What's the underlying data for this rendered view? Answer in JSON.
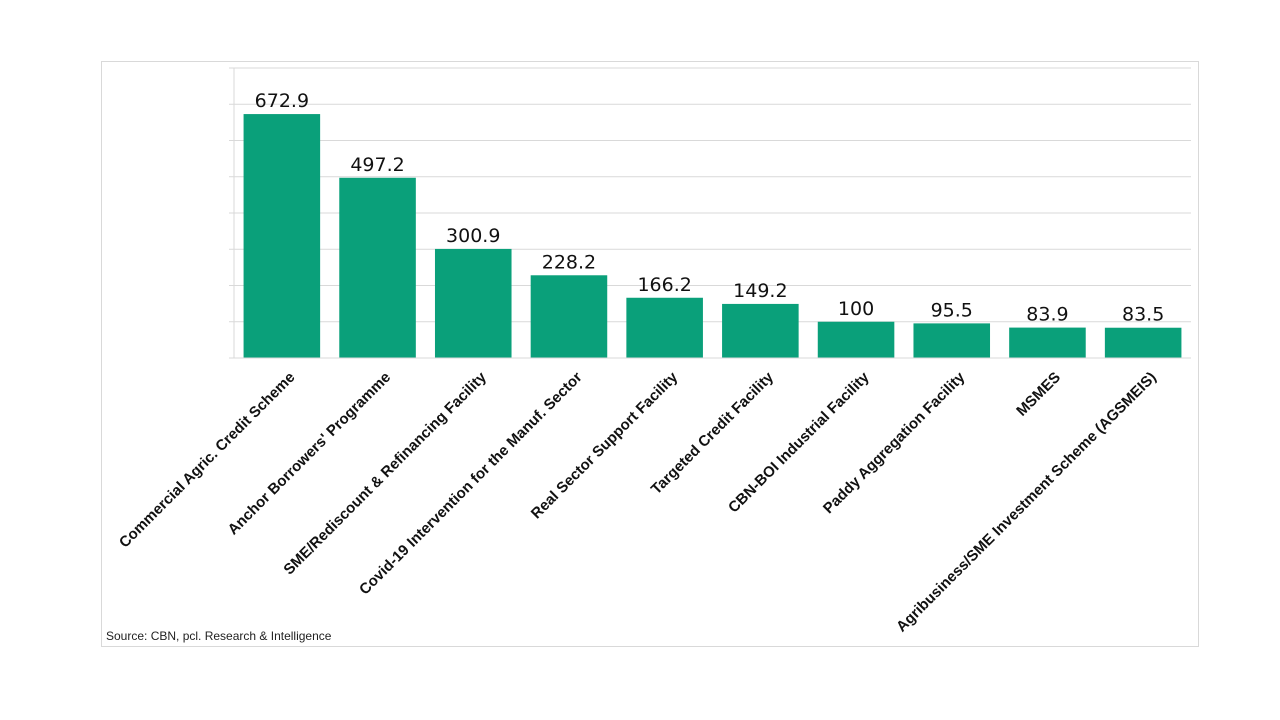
{
  "chart_data": {
    "type": "bar",
    "categories": [
      "Commercial Agric. Credit Scheme",
      "Anchor Borrowers' Programme",
      "SME/Rediscount & Refinancing Facility",
      "Covid-19 Intervention for the Manuf. Sector",
      "Real Sector Support Facility",
      "Targeted Credit Facility",
      "CBN-BOI Industrial Facility",
      "Paddy Aggregation Facility",
      "MSMES",
      "Agribusiness/SME Investment Scheme (AGSMEIS)"
    ],
    "values": [
      672.9,
      497.2,
      300.9,
      228.2,
      166.2,
      149.2,
      100,
      95.5,
      83.9,
      83.5
    ],
    "value_labels": [
      "672.9",
      "497.2",
      "300.9",
      "228.2",
      "166.2",
      "149.2",
      "100",
      "95.5",
      "83.9",
      "83.5"
    ],
    "ylim": [
      0,
      800
    ],
    "ytick_step": 100,
    "grid": true,
    "legend": "none",
    "bar_color": "#0aa07a",
    "grid_color": "#d9d9d9"
  },
  "source": "Source: CBN, pcl. Research & Intelligence"
}
